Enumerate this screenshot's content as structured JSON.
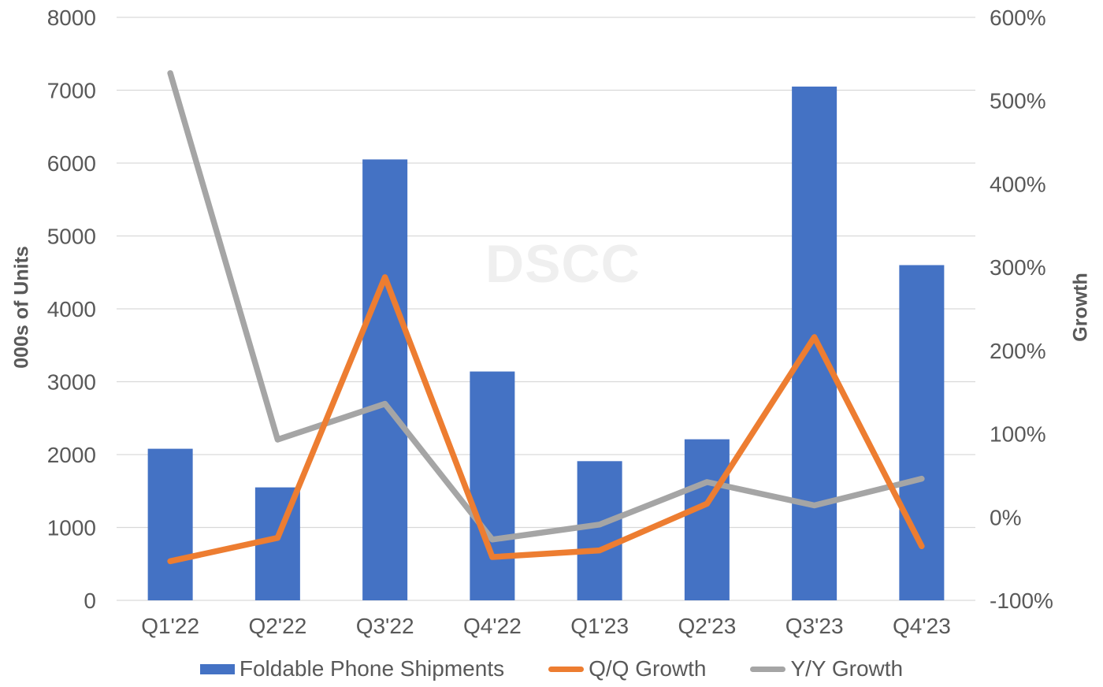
{
  "chart_data": {
    "type": "bar",
    "subtype": "bar-line-combo",
    "watermark": "DSCC",
    "categories": [
      "Q1'22",
      "Q2'22",
      "Q3'22",
      "Q4'22",
      "Q1'23",
      "Q2'23",
      "Q3'23",
      "Q4'23"
    ],
    "series": [
      {
        "name": "Foldable Phone Shipments",
        "type": "bar",
        "axis": "left",
        "color": "#4472C4",
        "values": [
          2080,
          1550,
          6050,
          3140,
          1910,
          2210,
          7050,
          4600
        ]
      },
      {
        "name": "Q/Q Growth",
        "type": "line",
        "axis": "right",
        "color": "#ED7D31",
        "values": [
          -53,
          -25,
          288,
          -48,
          -40,
          16,
          216,
          -35
        ]
      },
      {
        "name": "Y/Y Growth",
        "type": "line",
        "axis": "right",
        "color": "#A5A5A5",
        "values": [
          533,
          93,
          136,
          -27,
          -9,
          42,
          14,
          46
        ]
      }
    ],
    "left_axis": {
      "title": "000s of Units",
      "min": 0,
      "max": 8000,
      "step": 1000,
      "tick_labels": [
        "0",
        "1000",
        "2000",
        "3000",
        "4000",
        "5000",
        "6000",
        "7000",
        "8000"
      ]
    },
    "right_axis": {
      "title": "Growth",
      "min": -100,
      "max": 600,
      "step": 100,
      "suffix": "%",
      "tick_labels": [
        "-100%",
        "0%",
        "100%",
        "200%",
        "300%",
        "400%",
        "500%",
        "600%"
      ]
    },
    "grid": true,
    "legend_position": "bottom",
    "colors": {
      "text": "#595959",
      "gridline": "#D9D9D9",
      "background": "#FFFFFF",
      "watermark": "#EFEFEF"
    }
  }
}
